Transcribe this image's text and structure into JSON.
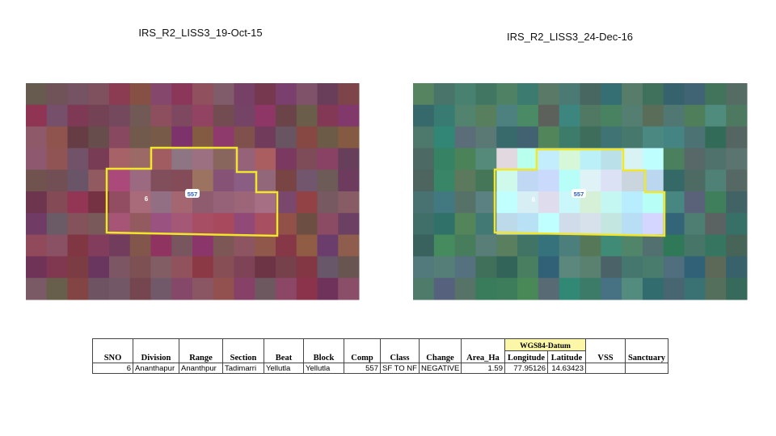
{
  "images": [
    {
      "title": "IRS_R2_LISS3_19-Oct-15",
      "labels": [
        "6",
        "557"
      ]
    },
    {
      "title": "IRS_R2_LISS3_24-Dec-16",
      "labels": [
        "6",
        "557"
      ]
    }
  ],
  "table": {
    "group_header": "WGS84-Datum",
    "columns": [
      "SNO",
      "Division",
      "Range",
      "Section",
      "Beat",
      "Block",
      "Comp",
      "Class",
      "Change",
      "Area_Ha",
      "Longitude",
      "Latitude",
      "VSS",
      "Sanctuary"
    ],
    "rows": [
      [
        6,
        "Ananthapur",
        "Ananthpur",
        "Tadimarri",
        "Yellutla",
        "Yellutla",
        557,
        "SF TO NF",
        "NEGATIVE",
        1.59,
        77.95126,
        14.63423
      ]
    ]
  }
}
